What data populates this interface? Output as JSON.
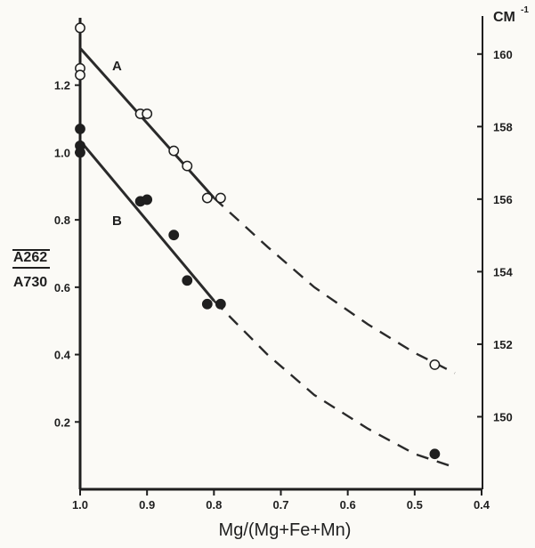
{
  "chart_data": {
    "type": "scatter",
    "title": "",
    "xlabel": "Mg/(Mg+Fe+Mn)",
    "ylabel": {
      "numerator": "A262",
      "denominator": "A730"
    },
    "y2label": "CM",
    "y2label_superscript": "-1",
    "xlim": [
      1.0,
      0.4
    ],
    "ylim": [
      0.0,
      1.4
    ],
    "y2lim": [
      148.0,
      161.0
    ],
    "x_ticks": [
      "1.0",
      "0.9",
      "0.8",
      "0.7",
      "0.6",
      "0.5",
      "0.4"
    ],
    "y_ticks": [
      "0.2",
      "0.4",
      "0.6",
      "0.8",
      "1.0",
      "1.2"
    ],
    "y2_ticks": [
      "150",
      "152",
      "154",
      "156",
      "158",
      "160"
    ],
    "grid": false,
    "legend": "none",
    "series": [
      {
        "name": "A",
        "marker": "open circle",
        "points": [
          {
            "x": 1.0,
            "y": 1.37
          },
          {
            "x": 1.0,
            "y": 1.25
          },
          {
            "x": 1.0,
            "y": 1.23
          },
          {
            "x": 0.91,
            "y": 1.115
          },
          {
            "x": 0.9,
            "y": 1.115
          },
          {
            "x": 0.86,
            "y": 1.005
          },
          {
            "x": 0.84,
            "y": 0.96
          },
          {
            "x": 0.81,
            "y": 0.865
          },
          {
            "x": 0.79,
            "y": 0.865
          },
          {
            "x": 0.47,
            "y": 0.37
          }
        ],
        "fit_line": [
          {
            "x": 1.0,
            "y": 1.31
          },
          {
            "x": 0.8,
            "y": 0.865
          }
        ],
        "dashed_curve": [
          {
            "x": 0.8,
            "y": 0.865
          },
          {
            "x": 0.72,
            "y": 0.72
          },
          {
            "x": 0.65,
            "y": 0.6
          },
          {
            "x": 0.57,
            "y": 0.49
          },
          {
            "x": 0.5,
            "y": 0.405
          },
          {
            "x": 0.44,
            "y": 0.345
          }
        ]
      },
      {
        "name": "B",
        "marker": "filled circle",
        "points": [
          {
            "x": 1.0,
            "y": 1.07
          },
          {
            "x": 1.0,
            "y": 1.02
          },
          {
            "x": 1.0,
            "y": 1.0
          },
          {
            "x": 0.91,
            "y": 0.855
          },
          {
            "x": 0.9,
            "y": 0.86
          },
          {
            "x": 0.86,
            "y": 0.755
          },
          {
            "x": 0.84,
            "y": 0.62
          },
          {
            "x": 0.81,
            "y": 0.55
          },
          {
            "x": 0.79,
            "y": 0.55
          },
          {
            "x": 0.47,
            "y": 0.105
          }
        ],
        "fit_line": [
          {
            "x": 1.0,
            "y": 1.035
          },
          {
            "x": 0.8,
            "y": 0.56
          }
        ],
        "dashed_curve": [
          {
            "x": 0.8,
            "y": 0.56
          },
          {
            "x": 0.72,
            "y": 0.4
          },
          {
            "x": 0.65,
            "y": 0.28
          },
          {
            "x": 0.57,
            "y": 0.18
          },
          {
            "x": 0.5,
            "y": 0.105
          },
          {
            "x": 0.44,
            "y": 0.065
          }
        ]
      }
    ]
  }
}
